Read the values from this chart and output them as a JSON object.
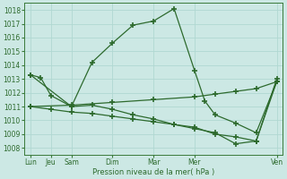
{
  "background_color": "#cce8e4",
  "grid_color": "#b0d8d2",
  "line_color": "#2d6a2d",
  "xlabel": "Pression niveau de la mer( hPa )",
  "ylim": [
    1007.5,
    1018.5
  ],
  "yticks": [
    1008,
    1009,
    1010,
    1011,
    1012,
    1013,
    1014,
    1015,
    1016,
    1017,
    1018
  ],
  "x_tick_positions": [
    0,
    1,
    2,
    4,
    6,
    8,
    12
  ],
  "x_tick_labels": [
    "Lun",
    "Jeu",
    "Sam",
    "Dim",
    "Mar",
    "Mer",
    "Ven"
  ],
  "xlim": [
    -0.3,
    12.3
  ],
  "series1_x": [
    0,
    0.5,
    1,
    2,
    3,
    4,
    5,
    6,
    7,
    8,
    8.5,
    9,
    10,
    11,
    12
  ],
  "series1_y": [
    1013.3,
    1013.1,
    1011.8,
    1011.0,
    1014.2,
    1015.6,
    1016.9,
    1017.2,
    1018.1,
    1013.6,
    1011.4,
    1010.4,
    1009.8,
    1009.1,
    1012.8
  ],
  "series2_x": [
    0,
    2,
    3,
    4,
    5,
    6,
    7,
    8,
    9,
    10,
    11,
    12
  ],
  "series2_y": [
    1013.3,
    1011.0,
    1011.1,
    1010.8,
    1010.4,
    1010.1,
    1009.7,
    1009.4,
    1009.1,
    1008.3,
    1008.5,
    1013.0
  ],
  "series3_x": [
    0,
    1,
    2,
    3,
    4,
    5,
    6,
    7,
    8,
    9,
    10,
    11,
    12
  ],
  "series3_y": [
    1011.0,
    1010.8,
    1010.6,
    1010.5,
    1010.3,
    1010.1,
    1009.9,
    1009.7,
    1009.5,
    1009.0,
    1008.8,
    1008.5,
    1012.8
  ],
  "series4_x": [
    0,
    2,
    4,
    6,
    8,
    9,
    10,
    11,
    12
  ],
  "series4_y": [
    1011.0,
    1011.1,
    1011.3,
    1011.5,
    1011.7,
    1011.9,
    1012.1,
    1012.3,
    1012.8
  ]
}
